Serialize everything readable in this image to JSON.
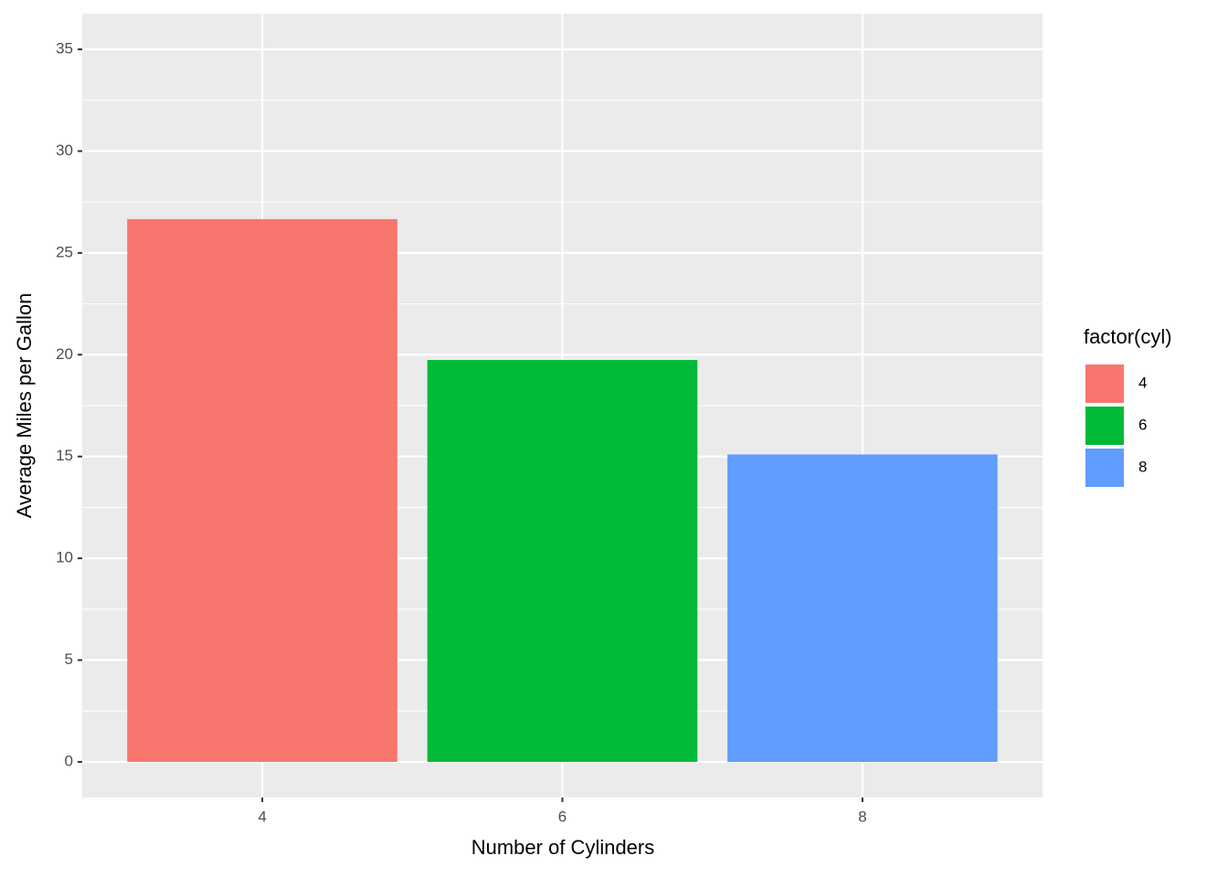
{
  "chart_data": {
    "type": "bar",
    "x_label": "Number of Cylinders",
    "y_label": "Average Miles per Gallon",
    "categories": [
      "4",
      "6",
      "8"
    ],
    "values": [
      26.66,
      19.74,
      15.1
    ],
    "colors": [
      "#f8766d",
      "#00ba38",
      "#619cff"
    ],
    "ylim": [
      -1.75,
      36.75
    ],
    "yticks": [
      0,
      5,
      10,
      15,
      20,
      25,
      30,
      35
    ],
    "grid": true,
    "legend": {
      "title": "factor(cyl)",
      "position": "right"
    }
  }
}
